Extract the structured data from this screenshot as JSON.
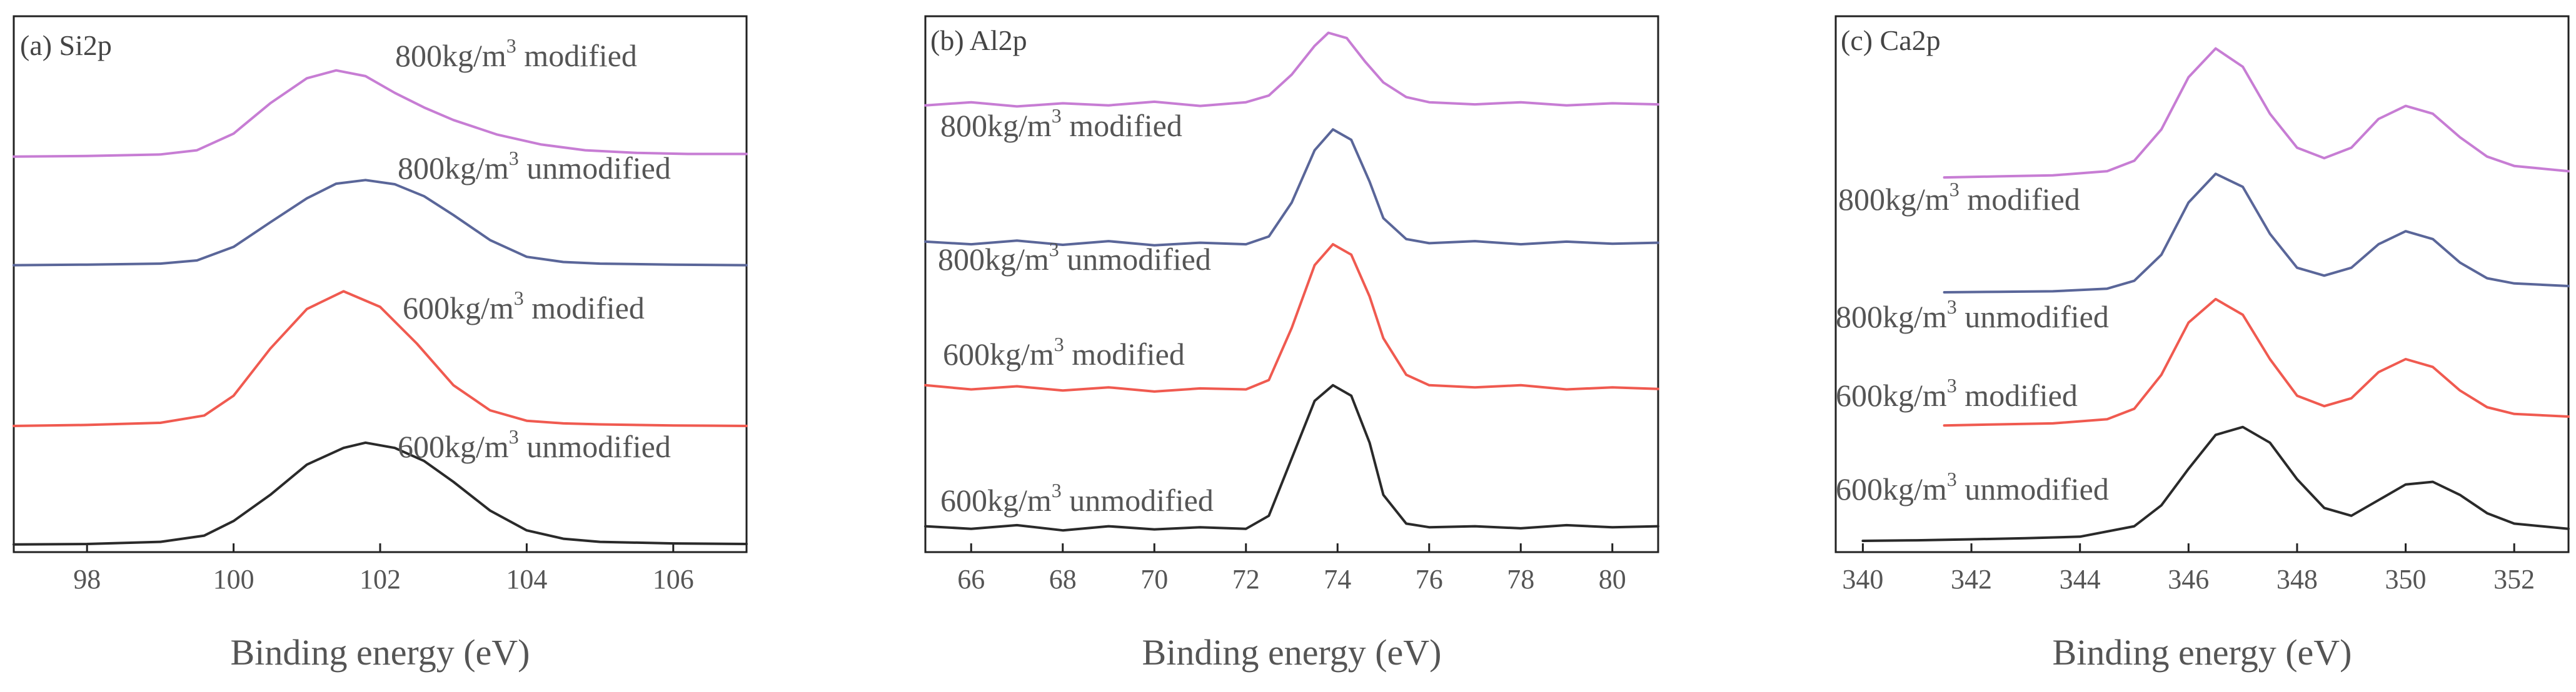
{
  "colors": {
    "modified_800": "#c77dd4",
    "unmodified_800": "#5a6699",
    "modified_600": "#f05a50",
    "unmodified_600": "#2a2a2a"
  },
  "chart_data": [
    {
      "type": "line",
      "title": "(a) Si2p",
      "xlabel": "Binding energy (eV)",
      "ylabel": "",
      "xlim": [
        97,
        107
      ],
      "xticks": [
        98,
        100,
        102,
        104,
        106
      ],
      "ylim": [
        0,
        1
      ],
      "grid": false,
      "series": [
        {
          "name": "800kg/m3 modified",
          "label_pre": "800kg/m",
          "label_sup": "3",
          "label_post": " modified",
          "color": "#c77dd4",
          "x": [
            97,
            98,
            99,
            99.5,
            100,
            100.5,
            101,
            101.4,
            101.8,
            102.2,
            102.6,
            103,
            103.6,
            104.2,
            104.8,
            105.5,
            106.2,
            107
          ],
          "y": [
            0.748,
            0.749,
            0.752,
            0.76,
            0.792,
            0.85,
            0.898,
            0.913,
            0.902,
            0.87,
            0.842,
            0.818,
            0.79,
            0.771,
            0.76,
            0.755,
            0.753,
            0.753
          ]
        },
        {
          "name": "800kg/m3 unmodified",
          "label_pre": "800kg/m",
          "label_sup": "3",
          "label_post": " unmodified",
          "color": "#5a6699",
          "x": [
            97,
            98,
            99,
            99.5,
            100,
            100.5,
            101,
            101.4,
            101.8,
            102.2,
            102.6,
            103,
            103.5,
            104,
            104.5,
            105,
            106,
            107
          ],
          "y": [
            0.54,
            0.541,
            0.543,
            0.549,
            0.575,
            0.622,
            0.668,
            0.696,
            0.703,
            0.695,
            0.672,
            0.636,
            0.588,
            0.556,
            0.546,
            0.543,
            0.541,
            0.54
          ]
        },
        {
          "name": "600kg/m3 modified",
          "label_pre": "600kg/m",
          "label_sup": "3",
          "label_post": " modified",
          "color": "#f05a50",
          "x": [
            97,
            98,
            99,
            99.6,
            100,
            100.5,
            101,
            101.5,
            102,
            102.5,
            103,
            103.5,
            104,
            104.5,
            105,
            106,
            107
          ],
          "y": [
            0.232,
            0.234,
            0.238,
            0.252,
            0.29,
            0.38,
            0.456,
            0.49,
            0.46,
            0.39,
            0.31,
            0.262,
            0.242,
            0.237,
            0.235,
            0.233,
            0.232
          ]
        },
        {
          "name": "600kg/m3 unmodified",
          "label_pre": "600kg/m",
          "label_sup": "3",
          "label_post": " unmodified",
          "color": "#2a2a2a",
          "x": [
            97,
            98,
            99,
            99.6,
            100,
            100.5,
            101,
            101.5,
            101.8,
            102.2,
            102.6,
            103,
            103.5,
            104,
            104.5,
            105,
            106,
            107
          ],
          "y": [
            0.005,
            0.006,
            0.01,
            0.022,
            0.05,
            0.1,
            0.158,
            0.19,
            0.2,
            0.19,
            0.165,
            0.125,
            0.07,
            0.032,
            0.016,
            0.01,
            0.007,
            0.006
          ]
        }
      ]
    },
    {
      "type": "line",
      "title": "(b) Al2p",
      "xlabel": "Binding energy (eV)",
      "ylabel": "",
      "xlim": [
        65,
        81
      ],
      "xticks": [
        66,
        68,
        70,
        72,
        74,
        76,
        78,
        80
      ],
      "ylim": [
        0,
        1
      ],
      "grid": false,
      "series": [
        {
          "name": "800kg/m3 modified",
          "label_pre": "800kg/m",
          "label_sup": "3",
          "label_post": " modified",
          "color": "#c77dd4",
          "x": [
            65,
            66,
            67,
            68,
            69,
            70,
            71,
            72,
            72.5,
            73,
            73.5,
            73.8,
            74.2,
            74.6,
            75,
            75.5,
            76,
            77,
            78,
            79,
            80,
            81
          ],
          "y": [
            0.846,
            0.852,
            0.844,
            0.85,
            0.846,
            0.853,
            0.845,
            0.852,
            0.865,
            0.905,
            0.96,
            0.985,
            0.975,
            0.93,
            0.89,
            0.862,
            0.852,
            0.848,
            0.852,
            0.846,
            0.85,
            0.848
          ]
        },
        {
          "name": "800kg/m3 unmodified",
          "label_pre": "800kg/m",
          "label_sup": "3",
          "label_post": " unmodified",
          "color": "#5a6699",
          "x": [
            65,
            66,
            67,
            68,
            69,
            70,
            71,
            72,
            72.5,
            73,
            73.5,
            73.9,
            74.3,
            74.7,
            75,
            75.5,
            76,
            77,
            78,
            79,
            80,
            81
          ],
          "y": [
            0.585,
            0.58,
            0.587,
            0.579,
            0.586,
            0.578,
            0.583,
            0.58,
            0.595,
            0.66,
            0.76,
            0.8,
            0.78,
            0.7,
            0.63,
            0.59,
            0.582,
            0.586,
            0.58,
            0.585,
            0.581,
            0.583
          ]
        },
        {
          "name": "600kg/m3 modified",
          "label_pre": "600kg/m",
          "label_sup": "3",
          "label_post": " modified",
          "color": "#f05a50",
          "x": [
            65,
            66,
            67,
            68,
            69,
            70,
            71,
            72,
            72.5,
            73,
            73.5,
            73.9,
            74.3,
            74.7,
            75,
            75.5,
            76,
            77,
            78,
            79,
            80,
            81
          ],
          "y": [
            0.31,
            0.302,
            0.308,
            0.3,
            0.306,
            0.298,
            0.304,
            0.302,
            0.32,
            0.42,
            0.54,
            0.58,
            0.56,
            0.48,
            0.4,
            0.33,
            0.31,
            0.306,
            0.31,
            0.302,
            0.306,
            0.303
          ]
        },
        {
          "name": "600kg/m3 unmodified",
          "label_pre": "600kg/m",
          "label_sup": "3",
          "label_post": " unmodified",
          "color": "#2a2a2a",
          "x": [
            65,
            66,
            67,
            68,
            69,
            70,
            71,
            72,
            72.5,
            73,
            73.5,
            73.9,
            74.3,
            74.7,
            75,
            75.5,
            76,
            77,
            78,
            79,
            80,
            81
          ],
          "y": [
            0.04,
            0.035,
            0.042,
            0.032,
            0.04,
            0.034,
            0.038,
            0.035,
            0.06,
            0.17,
            0.28,
            0.31,
            0.29,
            0.2,
            0.1,
            0.045,
            0.038,
            0.04,
            0.036,
            0.042,
            0.038,
            0.04
          ]
        }
      ]
    },
    {
      "type": "line",
      "title": "(c) Ca2p",
      "xlabel": "Binding energy (eV)",
      "ylabel": "",
      "xlim": [
        339.5,
        353
      ],
      "xticks": [
        340,
        342,
        344,
        346,
        348,
        350,
        352
      ],
      "ylim": [
        0,
        1
      ],
      "grid": false,
      "series": [
        {
          "name": "800kg/m3 modified",
          "label_pre": "800kg/m",
          "label_sup": "3",
          "label_post": " modified",
          "color": "#c77dd4",
          "x": [
            341.5,
            342.5,
            343.5,
            344.5,
            345,
            345.5,
            346,
            346.5,
            347,
            347.5,
            348,
            348.5,
            349,
            349.5,
            350,
            350.5,
            351,
            351.5,
            352,
            353
          ],
          "y": [
            0.708,
            0.71,
            0.712,
            0.72,
            0.74,
            0.8,
            0.9,
            0.955,
            0.92,
            0.83,
            0.765,
            0.745,
            0.765,
            0.82,
            0.845,
            0.83,
            0.785,
            0.748,
            0.73,
            0.72
          ]
        },
        {
          "name": "800kg/m3 unmodified",
          "label_pre": "800kg/m",
          "label_sup": "3",
          "label_post": " unmodified",
          "color": "#5a6699",
          "x": [
            341.5,
            342.5,
            343.5,
            344.5,
            345,
            345.5,
            346,
            346.5,
            347,
            347.5,
            348,
            348.5,
            349,
            349.5,
            350,
            350.5,
            351,
            351.5,
            352,
            353
          ],
          "y": [
            0.488,
            0.489,
            0.49,
            0.495,
            0.51,
            0.56,
            0.66,
            0.715,
            0.69,
            0.6,
            0.535,
            0.52,
            0.535,
            0.58,
            0.605,
            0.59,
            0.545,
            0.515,
            0.505,
            0.5
          ]
        },
        {
          "name": "600kg/m3 modified",
          "label_pre": "600kg/m",
          "label_sup": "3",
          "label_post": " modified",
          "color": "#f05a50",
          "x": [
            341.5,
            342.5,
            343.5,
            344.5,
            345,
            345.5,
            346,
            346.5,
            347,
            347.5,
            348,
            348.5,
            349,
            349.5,
            350,
            350.5,
            351,
            351.5,
            352,
            353
          ],
          "y": [
            0.233,
            0.235,
            0.237,
            0.245,
            0.265,
            0.33,
            0.43,
            0.475,
            0.445,
            0.36,
            0.29,
            0.27,
            0.285,
            0.335,
            0.36,
            0.345,
            0.3,
            0.268,
            0.255,
            0.25
          ]
        },
        {
          "name": "600kg/m3 unmodified",
          "label_pre": "600kg/m",
          "label_sup": "3",
          "label_post": " unmodified",
          "color": "#2a2a2a",
          "x": [
            340,
            341,
            342,
            343,
            344,
            345,
            345.5,
            346,
            346.5,
            347,
            347.5,
            348,
            348.5,
            349,
            349.5,
            350,
            350.5,
            351,
            351.5,
            352,
            353
          ],
          "y": [
            0.012,
            0.013,
            0.015,
            0.017,
            0.02,
            0.04,
            0.08,
            0.15,
            0.215,
            0.23,
            0.2,
            0.13,
            0.075,
            0.06,
            0.09,
            0.12,
            0.125,
            0.1,
            0.065,
            0.045,
            0.035
          ]
        }
      ]
    }
  ]
}
